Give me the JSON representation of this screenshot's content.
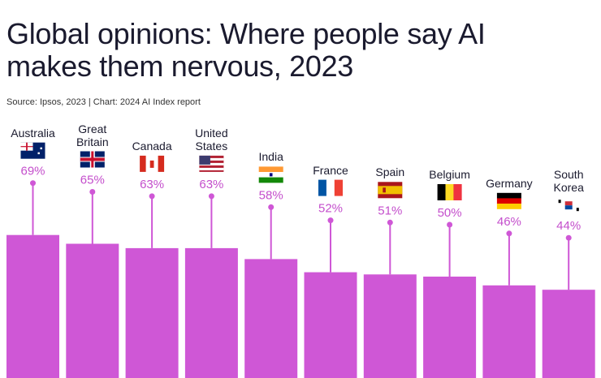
{
  "chart_data": {
    "type": "bar",
    "title": "Global opinions: Where people say AI makes them nervous, 2023",
    "subtitle": "Source: Ipsos, 2023 | Chart: 2024 AI Index report",
    "categories": [
      "Australia",
      "Great Britain",
      "Canada",
      "United States",
      "India",
      "France",
      "Spain",
      "Belgium",
      "Germany",
      "South Korea"
    ],
    "values": [
      69,
      65,
      63,
      63,
      58,
      52,
      51,
      50,
      46,
      44
    ],
    "value_labels": [
      "69%",
      "65%",
      "63%",
      "63%",
      "58%",
      "52%",
      "51%",
      "50%",
      "46%",
      "44%"
    ],
    "color": "#cf57d6"
  }
}
